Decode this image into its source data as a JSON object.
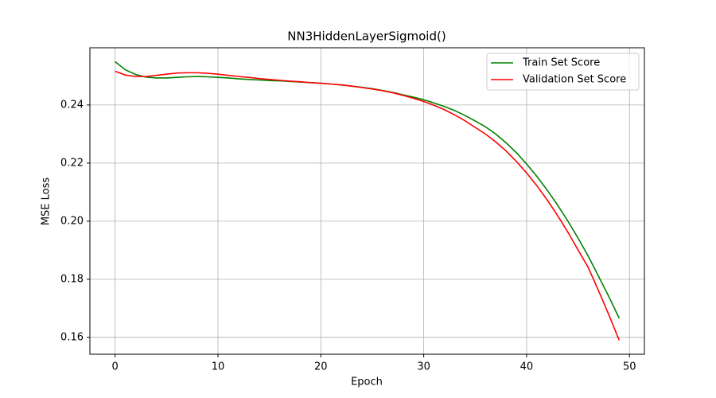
{
  "chart_data": {
    "type": "line",
    "title": "NN3HiddenLayerSigmoid()",
    "xlabel": "Epoch",
    "ylabel": "MSE Loss",
    "x": [
      0,
      1,
      2,
      3,
      4,
      5,
      6,
      7,
      8,
      9,
      10,
      11,
      12,
      13,
      14,
      15,
      16,
      17,
      18,
      19,
      20,
      21,
      22,
      23,
      24,
      25,
      26,
      27,
      28,
      29,
      30,
      31,
      32,
      33,
      34,
      35,
      36,
      37,
      38,
      39,
      40,
      41,
      42,
      43,
      44,
      45,
      46,
      47,
      48,
      49
    ],
    "series": [
      {
        "name": "Train Set Score",
        "color": "#008000",
        "values": [
          0.2549,
          0.2521,
          0.2505,
          0.2496,
          0.2493,
          0.2493,
          0.2495,
          0.2497,
          0.2498,
          0.2497,
          0.2495,
          0.2493,
          0.249,
          0.2488,
          0.2486,
          0.2484,
          0.2483,
          0.2481,
          0.2479,
          0.2477,
          0.2475,
          0.2472,
          0.2469,
          0.2465,
          0.2461,
          0.2456,
          0.245,
          0.2443,
          0.2435,
          0.2427,
          0.2418,
          0.2407,
          0.2395,
          0.2381,
          0.2364,
          0.2345,
          0.2325,
          0.23,
          0.227,
          0.2236,
          0.2197,
          0.2154,
          0.2107,
          0.2056,
          0.2001,
          0.1942,
          0.1879,
          0.181,
          0.174,
          0.1666
        ]
      },
      {
        "name": "Validation Set Score",
        "color": "#ff0000",
        "values": [
          0.2516,
          0.2503,
          0.2498,
          0.2498,
          0.2502,
          0.2506,
          0.251,
          0.2511,
          0.2511,
          0.2509,
          0.2506,
          0.2502,
          0.2498,
          0.2495,
          0.2491,
          0.2488,
          0.2485,
          0.2482,
          0.248,
          0.2477,
          0.2475,
          0.2472,
          0.2469,
          0.2465,
          0.246,
          0.2455,
          0.2449,
          0.2442,
          0.2433,
          0.2423,
          0.2412,
          0.2399,
          0.2384,
          0.2366,
          0.2346,
          0.2323,
          0.23,
          0.2273,
          0.2242,
          0.2206,
          0.2166,
          0.2122,
          0.2073,
          0.202,
          0.1963,
          0.1901,
          0.184,
          0.176,
          0.1677,
          0.159
        ]
      }
    ],
    "xlim": [
      -2.45,
      51.45
    ],
    "ylim": [
      0.1542,
      0.2597
    ],
    "xticks": [
      0,
      10,
      20,
      30,
      40,
      50
    ],
    "yticks": [
      0.16,
      0.18,
      {
        "value": 0.2,
        "label": "0.20"
      },
      0.22,
      0.24
    ],
    "grid": true,
    "legend": "upper right"
  }
}
